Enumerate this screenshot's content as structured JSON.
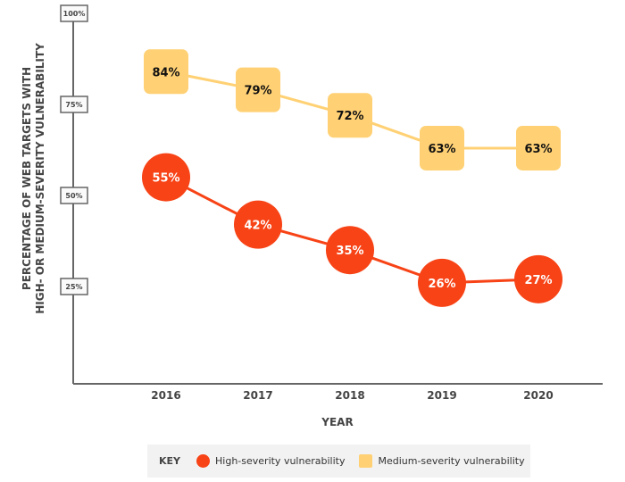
{
  "chart_data": {
    "type": "line",
    "categories": [
      "2016",
      "2017",
      "2018",
      "2019",
      "2020"
    ],
    "series": [
      {
        "name": "High-severity vulnerability",
        "values": [
          55,
          42,
          35,
          26,
          27
        ],
        "color": "#f74316",
        "marker": "circle"
      },
      {
        "name": "Medium-severity vulnerability",
        "values": [
          84,
          79,
          72,
          63,
          63
        ],
        "color": "#ffd174",
        "marker": "rounded-square"
      }
    ],
    "xlabel": "YEAR",
    "ylabel_lines": [
      "PERCENTAGE OF WEB TARGETS WITH",
      "HIGH- OR MEDIUM-SEVERITY VULNERABILITY"
    ],
    "yticks": [
      "25%",
      "50%",
      "75%",
      "100%"
    ],
    "ylim": [
      0,
      100
    ],
    "grid": false,
    "legend": {
      "title": "KEY",
      "placement": "bottom"
    }
  }
}
